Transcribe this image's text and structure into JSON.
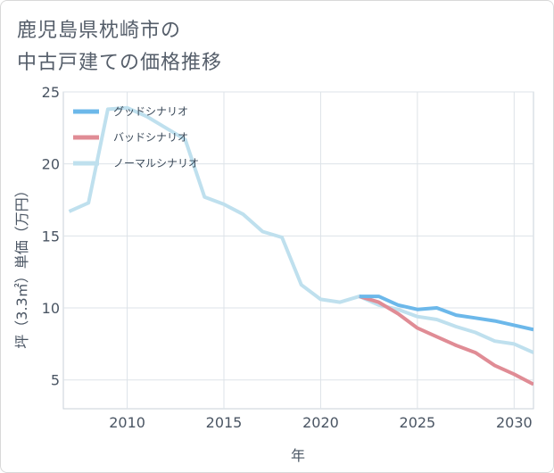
{
  "title": {
    "line1": "鹿児島県枕崎市の",
    "line2": "中古戸建ての価格推移"
  },
  "chart_data": {
    "type": "line",
    "xlabel": "年",
    "ylabel": "坪（3.3㎡）単価（万円）",
    "xlim": [
      2006.7,
      2031
    ],
    "ylim": [
      3,
      25
    ],
    "x_ticks": [
      2010,
      2015,
      2020,
      2025,
      2030
    ],
    "y_ticks": [
      5,
      10,
      15,
      20,
      25
    ],
    "x_tick_labels": [
      "2010",
      "2015",
      "2020",
      "2025",
      "2030"
    ],
    "y_tick_labels": [
      "5",
      "10",
      "15",
      "20",
      "25"
    ],
    "grid": true,
    "legend_position": "top-left",
    "series": [
      {
        "name": "グッドシナリオ",
        "color": "#6cb8ea",
        "x": [
          2022,
          2023,
          2024,
          2025,
          2026,
          2027,
          2028,
          2029,
          2030,
          2031
        ],
        "values": [
          10.8,
          10.8,
          10.2,
          9.9,
          10.0,
          9.5,
          9.3,
          9.1,
          8.8,
          8.5
        ]
      },
      {
        "name": "バッドシナリオ",
        "color": "#e08c95",
        "x": [
          2022,
          2023,
          2024,
          2025,
          2026,
          2027,
          2028,
          2029,
          2030,
          2031
        ],
        "values": [
          10.8,
          10.4,
          9.6,
          8.6,
          8.0,
          7.4,
          6.9,
          6.0,
          5.4,
          4.7
        ]
      },
      {
        "name": "ノーマルシナリオ",
        "color": "#bfe0ee",
        "x": [
          2007,
          2008,
          2009,
          2010,
          2011,
          2012,
          2013,
          2014,
          2015,
          2016,
          2017,
          2018,
          2019,
          2020,
          2021,
          2022,
          2023,
          2024,
          2025,
          2026,
          2027,
          2028,
          2029,
          2030,
          2031
        ],
        "values": [
          16.7,
          17.3,
          23.8,
          23.9,
          23.3,
          22.5,
          21.7,
          17.7,
          17.2,
          16.5,
          15.3,
          14.9,
          11.6,
          10.6,
          10.4,
          10.8,
          10.2,
          9.9,
          9.4,
          9.2,
          8.7,
          8.3,
          7.7,
          7.5,
          6.9
        ]
      }
    ]
  }
}
